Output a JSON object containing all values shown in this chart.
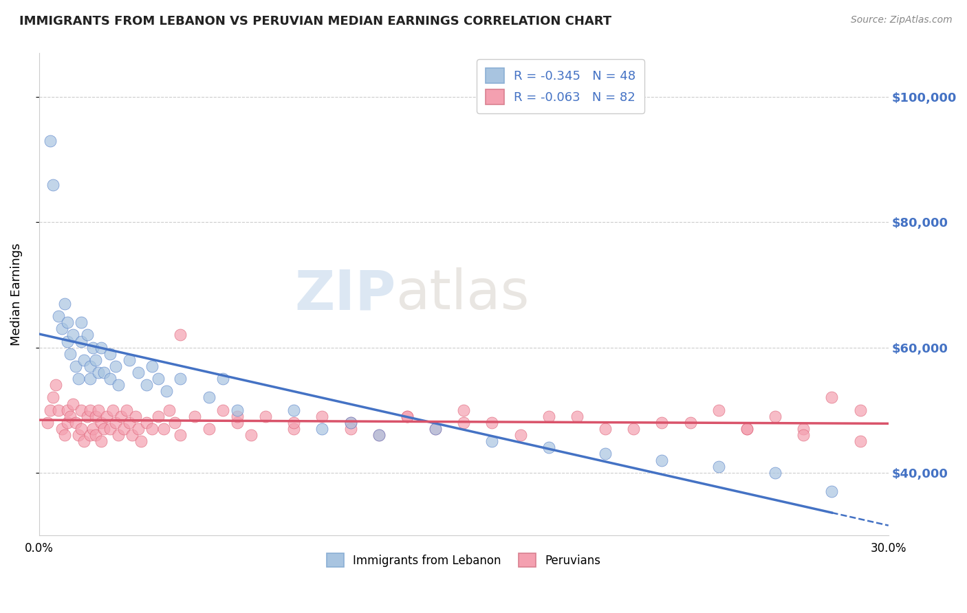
{
  "title": "IMMIGRANTS FROM LEBANON VS PERUVIAN MEDIAN EARNINGS CORRELATION CHART",
  "source": "Source: ZipAtlas.com",
  "ylabel": "Median Earnings",
  "xlim": [
    0.0,
    0.3
  ],
  "ylim": [
    30000,
    107000
  ],
  "yticks": [
    40000,
    60000,
    80000,
    100000
  ],
  "ytick_labels": [
    "$40,000",
    "$60,000",
    "$80,000",
    "$100,000"
  ],
  "xticks": [
    0.0,
    0.05,
    0.1,
    0.15,
    0.2,
    0.25,
    0.3
  ],
  "xtick_labels": [
    "0.0%",
    "",
    "",
    "",
    "",
    "",
    "30.0%"
  ],
  "color_lebanon": "#a8c4e0",
  "color_peru": "#f4a0b0",
  "color_lebanon_line": "#4472c4",
  "color_peru_line": "#d9536a",
  "lebanon_x": [
    0.004,
    0.005,
    0.007,
    0.008,
    0.009,
    0.01,
    0.01,
    0.011,
    0.012,
    0.013,
    0.014,
    0.015,
    0.015,
    0.016,
    0.017,
    0.018,
    0.018,
    0.019,
    0.02,
    0.021,
    0.022,
    0.023,
    0.025,
    0.025,
    0.027,
    0.028,
    0.032,
    0.035,
    0.038,
    0.04,
    0.042,
    0.045,
    0.05,
    0.06,
    0.065,
    0.07,
    0.09,
    0.1,
    0.11,
    0.12,
    0.14,
    0.16,
    0.18,
    0.2,
    0.22,
    0.24,
    0.26,
    0.28
  ],
  "lebanon_y": [
    93000,
    86000,
    65000,
    63000,
    67000,
    64000,
    61000,
    59000,
    62000,
    57000,
    55000,
    64000,
    61000,
    58000,
    62000,
    57000,
    55000,
    60000,
    58000,
    56000,
    60000,
    56000,
    59000,
    55000,
    57000,
    54000,
    58000,
    56000,
    54000,
    57000,
    55000,
    53000,
    55000,
    52000,
    55000,
    50000,
    50000,
    47000,
    48000,
    46000,
    47000,
    45000,
    44000,
    43000,
    42000,
    41000,
    40000,
    37000
  ],
  "peru_x": [
    0.003,
    0.004,
    0.005,
    0.006,
    0.007,
    0.008,
    0.009,
    0.01,
    0.01,
    0.011,
    0.012,
    0.013,
    0.014,
    0.015,
    0.015,
    0.016,
    0.017,
    0.018,
    0.018,
    0.019,
    0.02,
    0.02,
    0.021,
    0.022,
    0.022,
    0.023,
    0.024,
    0.025,
    0.026,
    0.027,
    0.028,
    0.029,
    0.03,
    0.031,
    0.032,
    0.033,
    0.034,
    0.035,
    0.036,
    0.038,
    0.04,
    0.042,
    0.044,
    0.046,
    0.048,
    0.05,
    0.055,
    0.06,
    0.065,
    0.07,
    0.075,
    0.08,
    0.09,
    0.1,
    0.11,
    0.12,
    0.13,
    0.14,
    0.15,
    0.16,
    0.18,
    0.2,
    0.22,
    0.24,
    0.25,
    0.26,
    0.27,
    0.28,
    0.29,
    0.29,
    0.05,
    0.07,
    0.09,
    0.11,
    0.13,
    0.15,
    0.17,
    0.19,
    0.21,
    0.23,
    0.25,
    0.27
  ],
  "peru_y": [
    48000,
    50000,
    52000,
    54000,
    50000,
    47000,
    46000,
    50000,
    48000,
    49000,
    51000,
    48000,
    46000,
    50000,
    47000,
    45000,
    49000,
    46000,
    50000,
    47000,
    49000,
    46000,
    50000,
    48000,
    45000,
    47000,
    49000,
    47000,
    50000,
    48000,
    46000,
    49000,
    47000,
    50000,
    48000,
    46000,
    49000,
    47000,
    45000,
    48000,
    47000,
    49000,
    47000,
    50000,
    48000,
    46000,
    49000,
    47000,
    50000,
    48000,
    46000,
    49000,
    47000,
    49000,
    48000,
    46000,
    49000,
    47000,
    50000,
    48000,
    49000,
    47000,
    48000,
    50000,
    47000,
    49000,
    47000,
    52000,
    45000,
    50000,
    62000,
    49000,
    48000,
    47000,
    49000,
    48000,
    46000,
    49000,
    47000,
    48000,
    47000,
    46000
  ]
}
